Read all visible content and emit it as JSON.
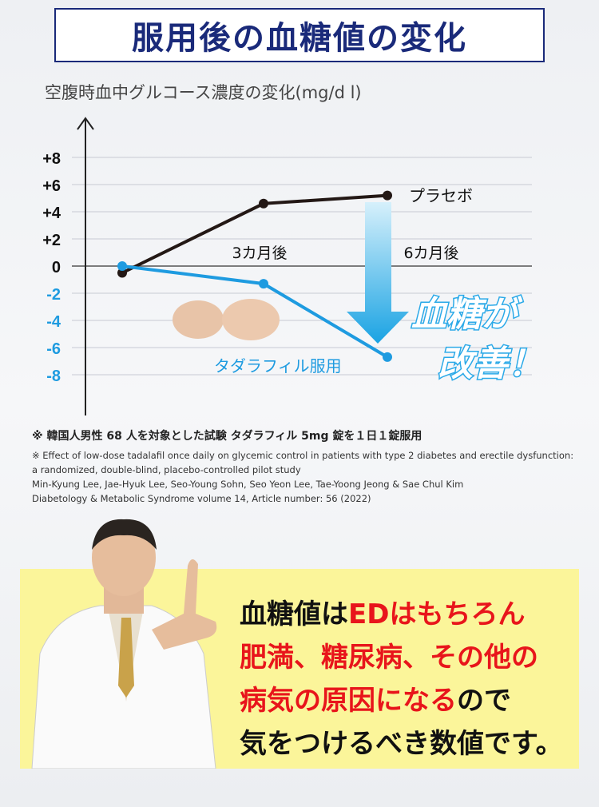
{
  "header": {
    "title": "服用後の血糖値の変化"
  },
  "chart_data": {
    "type": "line",
    "ylabel": "空腹時血中グルコース濃度の変化(mg/d l)",
    "categories": [
      "",
      "3カ月後",
      "6カ月後"
    ],
    "ylim": [
      -9,
      10
    ],
    "yticks": [
      {
        "v": 8,
        "label": "+8"
      },
      {
        "v": 6,
        "label": "+6"
      },
      {
        "v": 4,
        "label": "+4"
      },
      {
        "v": 2,
        "label": "+2"
      },
      {
        "v": 0,
        "label": "0"
      },
      {
        "v": -2,
        "label": "-2"
      },
      {
        "v": -4,
        "label": "-4"
      },
      {
        "v": -6,
        "label": "-6"
      },
      {
        "v": -8,
        "label": "-8"
      }
    ],
    "grid": true,
    "series": [
      {
        "name": "プラセボ",
        "values": [
          -0.5,
          4.6,
          5.2
        ],
        "color": "#231815"
      },
      {
        "name": "タダラフィル服用",
        "values": [
          0,
          -1.3,
          -6.7
        ],
        "color": "#1e9be0"
      }
    ],
    "annotation": {
      "line1": "血糖が",
      "line2": "改善！"
    }
  },
  "notes": {
    "jp": "※ 韓国人男性 68 人を対象とした試験 タダラフィル 5mg 錠を１日１錠服用",
    "en": [
      "※ Effect of low-dose tadalafil once daily on glycemic control in patients with type 2 diabetes and erectile dysfunction:",
      "a randomized, double-blind, placebo-controlled pilot study",
      "Min-Kyung Lee, Jae-Hyuk Lee, Seo-Young Sohn, Seo Yeon Lee, Tae-Yoong Jeong & Sae Chul Kim",
      "Diabetology & Metabolic Syndrome volume 14, Article number: 56 (2022)"
    ]
  },
  "message": {
    "l1a": "血糖値は",
    "l1b": "EDはもちろん",
    "l2": "肥満、糖尿病、その他の",
    "l3a": "病気の原因になる",
    "l3b": "ので",
    "l4": "気をつけるべき数値です。"
  },
  "colors": {
    "navy": "#1a2a7a",
    "blue": "#1e9be0",
    "red": "#e8151b",
    "yellow": "#fbf59a"
  }
}
